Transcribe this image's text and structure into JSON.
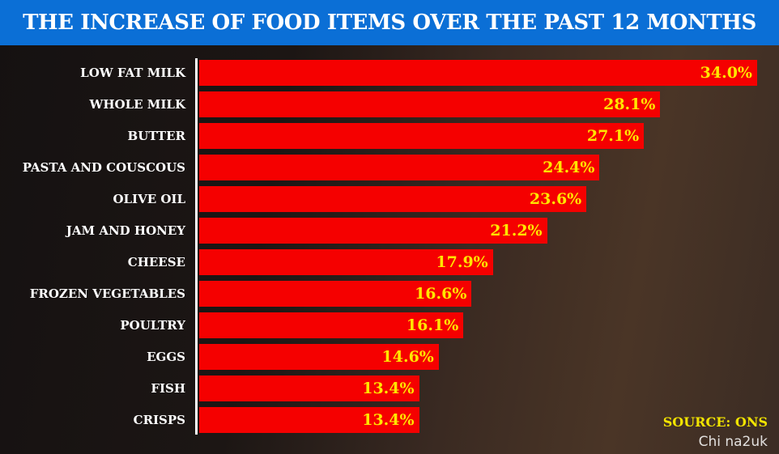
{
  "chart_data": {
    "type": "bar",
    "orientation": "horizontal",
    "title": "THE INCREASE OF FOOD ITEMS OVER THE PAST 12 MONTHS",
    "categories": [
      "LOW FAT MILK",
      "WHOLE MILK",
      "BUTTER",
      "PASTA AND COUSCOUS",
      "OLIVE OIL",
      "JAM AND HONEY",
      "CHEESE",
      "FROZEN VEGETABLES",
      "POULTRY",
      "EGGS",
      "FISH",
      "CRISPS"
    ],
    "values": [
      34.0,
      28.1,
      27.1,
      24.4,
      23.6,
      21.2,
      17.9,
      16.6,
      16.1,
      14.6,
      13.4,
      13.4
    ],
    "value_labels": [
      "34.0%",
      "28.1%",
      "27.1%",
      "24.4%",
      "23.6%",
      "21.2%",
      "17.9%",
      "16.6%",
      "16.1%",
      "14.6%",
      "13.4%",
      "13.4%"
    ],
    "xlim": [
      0,
      34.5
    ],
    "source": "SOURCE: ONS",
    "colors": {
      "bar": "#f50000",
      "label": "#ffe600",
      "header": "#0b6fd6"
    }
  },
  "watermark": "Chi na2uk"
}
